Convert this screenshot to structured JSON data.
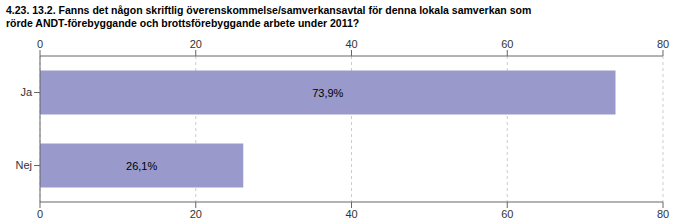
{
  "chart_data": {
    "type": "bar",
    "orientation": "horizontal",
    "title": "4.23. 13.2. Fanns det någon skriftlig överenskommelse/samverkansavtal för denna lokala samverkan som\nrörde ANDT-förebyggande och brottsförebyggande arbete under 2011?",
    "categories": [
      "Ja",
      "Nej"
    ],
    "values": [
      73.9,
      26.1
    ],
    "value_labels": [
      "73,9%",
      "26,1%"
    ],
    "data_labels": true,
    "color": "#9999cc",
    "xlim": [
      0,
      80
    ],
    "xticks": [
      0,
      20,
      40,
      60,
      80
    ],
    "grid": true
  }
}
